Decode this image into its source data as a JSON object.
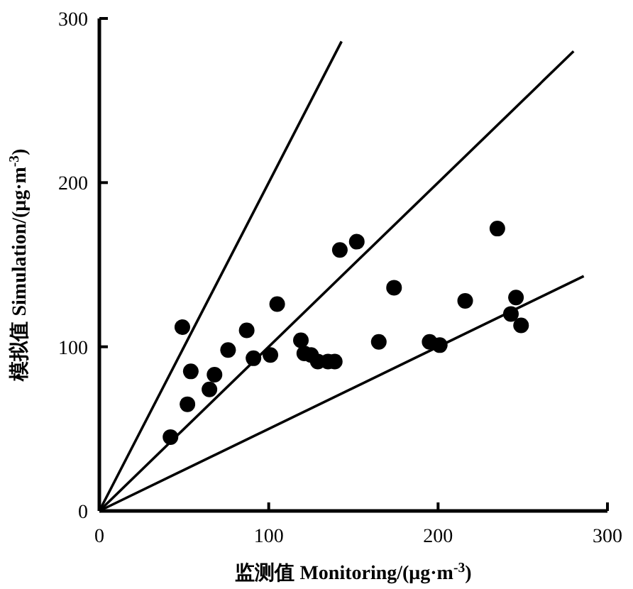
{
  "chart_data": {
    "type": "scatter",
    "xlabel": "监测值 Monitoring/(μg·m$^{-3}$)",
    "ylabel": "模拟值 Simulation/(μg·m$^{-3}$)",
    "xlim": [
      0,
      300
    ],
    "ylim": [
      0,
      300
    ],
    "xticks": [
      0,
      100,
      200,
      300
    ],
    "yticks": [
      0,
      100,
      200,
      300
    ],
    "grid": false,
    "marker": "circle",
    "series": [
      {
        "color": "#000000",
        "x": [
          49,
          54,
          52,
          42,
          65,
          68,
          76,
          87,
          91,
          101,
          105,
          119,
          121,
          125,
          129,
          135,
          139,
          142,
          152,
          165,
          174,
          195,
          201,
          216,
          235,
          246,
          243,
          249
        ],
        "values": [
          112,
          85,
          65,
          45,
          74,
          83,
          98,
          110,
          93,
          95,
          126,
          104,
          96,
          95,
          91,
          91,
          91,
          159,
          164,
          103,
          136,
          103,
          101,
          128,
          172,
          130,
          120,
          113
        ]
      },
      {
        "type": "line",
        "color": "#000000",
        "marker": "none",
        "line_style": "solid",
        "x": [
          0,
          143
        ],
        "values": [
          0,
          286
        ]
      },
      {
        "type": "line",
        "color": "#000000",
        "marker": "none",
        "line_style": "solid",
        "x": [
          0,
          280
        ],
        "values": [
          0,
          280
        ]
      },
      {
        "type": "line",
        "color": "#000000",
        "marker": "none",
        "line_style": "solid",
        "x": [
          0,
          286
        ],
        "values": [
          0,
          143
        ]
      }
    ]
  }
}
